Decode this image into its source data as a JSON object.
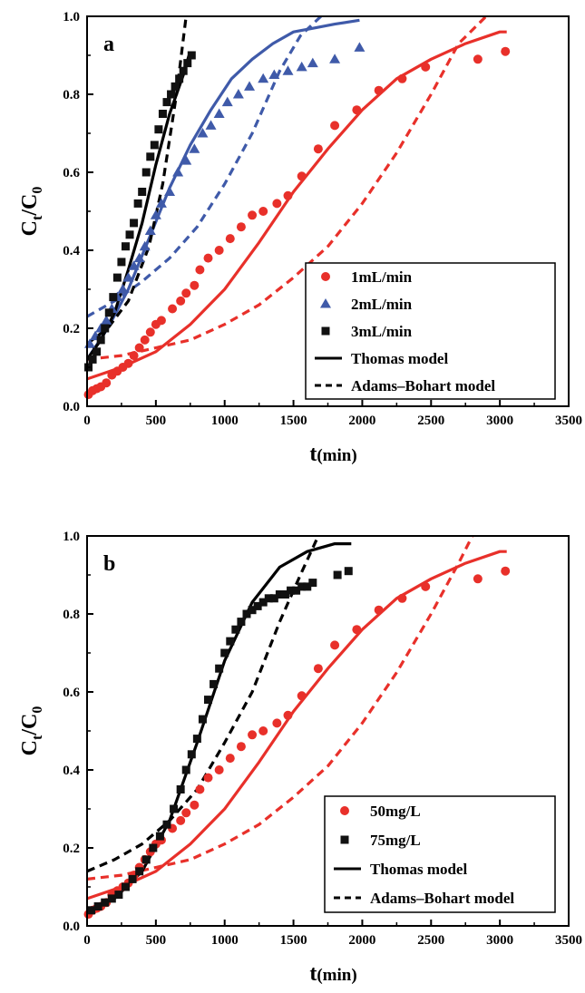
{
  "chart_data": [
    {
      "type": "scatter",
      "panel_label": "a",
      "xlabel_main": "t",
      "xlabel_unit": "(min)",
      "ylabel_main": "C",
      "ylabel_sub1": "t",
      "ylabel_mid": "/C",
      "ylabel_sub2": "0",
      "xlim": [
        0,
        3500
      ],
      "ylim": [
        0,
        1.0
      ],
      "x_ticks": [
        "0",
        "500",
        "1000",
        "1500",
        "2000",
        "2500",
        "3000",
        "3500"
      ],
      "y_ticks": [
        "0.0",
        "0.2",
        "0.4",
        "0.6",
        "0.8",
        "1.0"
      ],
      "grid": false,
      "legend_position": "bottom-right",
      "legend": [
        {
          "label": "1mL/min",
          "kind": "marker",
          "marker": "circle",
          "color": "#e8302a"
        },
        {
          "label": "2mL/min",
          "kind": "marker",
          "marker": "triangle",
          "color": "#3f5aa9"
        },
        {
          "label": "3mL/min",
          "kind": "marker",
          "marker": "square",
          "color": "#111111"
        },
        {
          "label": "Thomas model",
          "kind": "line",
          "dash": "solid",
          "color": "#000000"
        },
        {
          "label": "Adams–Bohart model",
          "kind": "line",
          "dash": "dashed",
          "color": "#000000"
        }
      ],
      "series": [
        {
          "name": "1mL/min",
          "marker": "circle",
          "color": "#e8302a",
          "x": [
            10,
            40,
            70,
            100,
            140,
            180,
            220,
            260,
            300,
            340,
            380,
            420,
            460,
            500,
            540,
            620,
            680,
            720,
            780,
            820,
            880,
            960,
            1040,
            1120,
            1200,
            1280,
            1380,
            1460,
            1560,
            1680,
            1800,
            1960,
            2120,
            2290,
            2460,
            2840,
            3040
          ],
          "y": [
            0.03,
            0.04,
            0.045,
            0.05,
            0.06,
            0.08,
            0.09,
            0.1,
            0.11,
            0.13,
            0.15,
            0.17,
            0.19,
            0.21,
            0.22,
            0.25,
            0.27,
            0.29,
            0.31,
            0.35,
            0.38,
            0.4,
            0.43,
            0.46,
            0.49,
            0.5,
            0.52,
            0.54,
            0.59,
            0.66,
            0.72,
            0.76,
            0.81,
            0.84,
            0.87,
            0.89,
            0.91
          ]
        },
        {
          "name": "2mL/min",
          "marker": "triangle",
          "color": "#3f5aa9",
          "x": [
            20,
            60,
            100,
            140,
            180,
            220,
            260,
            300,
            340,
            380,
            420,
            460,
            500,
            540,
            600,
            660,
            720,
            780,
            840,
            900,
            960,
            1020,
            1100,
            1180,
            1280,
            1360,
            1460,
            1560,
            1640,
            1800,
            1980
          ],
          "y": [
            0.16,
            0.18,
            0.2,
            0.22,
            0.25,
            0.28,
            0.3,
            0.33,
            0.36,
            0.38,
            0.41,
            0.45,
            0.49,
            0.52,
            0.55,
            0.6,
            0.63,
            0.66,
            0.7,
            0.72,
            0.75,
            0.78,
            0.8,
            0.82,
            0.84,
            0.85,
            0.86,
            0.87,
            0.88,
            0.89,
            0.92
          ]
        },
        {
          "name": "3mL/min",
          "marker": "square",
          "color": "#111111",
          "x": [
            10,
            40,
            70,
            100,
            130,
            160,
            190,
            220,
            250,
            280,
            310,
            340,
            370,
            400,
            430,
            460,
            490,
            520,
            550,
            580,
            610,
            640,
            670,
            700,
            730,
            760
          ],
          "y": [
            0.1,
            0.12,
            0.14,
            0.17,
            0.2,
            0.24,
            0.28,
            0.33,
            0.37,
            0.41,
            0.44,
            0.47,
            0.52,
            0.55,
            0.6,
            0.64,
            0.67,
            0.71,
            0.75,
            0.78,
            0.8,
            0.82,
            0.84,
            0.86,
            0.88,
            0.9
          ]
        },
        {
          "name": "Thomas model",
          "line": "solid",
          "color": "#e8302a",
          "x": [
            0,
            250,
            500,
            750,
            1000,
            1250,
            1500,
            1750,
            2000,
            2250,
            2500,
            2750,
            3000,
            3050
          ],
          "y": [
            0.07,
            0.1,
            0.14,
            0.21,
            0.3,
            0.42,
            0.55,
            0.66,
            0.76,
            0.84,
            0.89,
            0.93,
            0.96,
            0.96
          ]
        },
        {
          "name": "Adams–Bohart model",
          "line": "dashed",
          "color": "#e8302a",
          "x": [
            0,
            250,
            500,
            750,
            1000,
            1250,
            1500,
            1750,
            2000,
            2250,
            2500,
            2700,
            2900
          ],
          "y": [
            0.12,
            0.13,
            0.15,
            0.17,
            0.21,
            0.26,
            0.33,
            0.41,
            0.52,
            0.65,
            0.8,
            0.93,
            1.0
          ]
        },
        {
          "name": "Thomas model",
          "line": "solid",
          "color": "#3f5aa9",
          "x": [
            0,
            150,
            300,
            450,
            600,
            750,
            900,
            1050,
            1200,
            1350,
            1500,
            1650,
            1800,
            1980
          ],
          "y": [
            0.12,
            0.2,
            0.3,
            0.43,
            0.56,
            0.67,
            0.76,
            0.84,
            0.89,
            0.93,
            0.96,
            0.97,
            0.98,
            0.99
          ]
        },
        {
          "name": "Adams–Bohart model",
          "line": "dashed",
          "color": "#3f5aa9",
          "x": [
            0,
            200,
            400,
            600,
            800,
            1000,
            1200,
            1400,
            1550,
            1700
          ],
          "y": [
            0.23,
            0.27,
            0.32,
            0.38,
            0.46,
            0.57,
            0.7,
            0.86,
            0.95,
            1.0
          ]
        },
        {
          "name": "Thomas model",
          "line": "solid",
          "color": "#000000",
          "x": [
            0,
            100,
            200,
            300,
            400,
            500,
            600,
            700,
            740
          ],
          "y": [
            0.12,
            0.17,
            0.24,
            0.35,
            0.47,
            0.62,
            0.75,
            0.85,
            0.9
          ]
        },
        {
          "name": "Adams–Bohart model",
          "line": "dashed",
          "color": "#000000",
          "x": [
            0,
            150,
            300,
            450,
            550,
            650,
            720
          ],
          "y": [
            0.16,
            0.2,
            0.27,
            0.41,
            0.57,
            0.8,
            1.0
          ]
        }
      ]
    },
    {
      "type": "scatter",
      "panel_label": "b",
      "xlabel_main": "t",
      "xlabel_unit": "(min)",
      "ylabel_main": "C",
      "ylabel_sub1": "t",
      "ylabel_mid": "/C",
      "ylabel_sub2": "0",
      "xlim": [
        0,
        3500
      ],
      "ylim": [
        0,
        1.0
      ],
      "x_ticks": [
        "0",
        "500",
        "1000",
        "1500",
        "2000",
        "2500",
        "3000",
        "3500"
      ],
      "y_ticks": [
        "0.0",
        "0.2",
        "0.4",
        "0.6",
        "0.8",
        "1.0"
      ],
      "grid": false,
      "legend_position": "bottom-right",
      "legend": [
        {
          "label": "50mg/L",
          "kind": "marker",
          "marker": "circle",
          "color": "#e8302a"
        },
        {
          "label": "75mg/L",
          "kind": "marker",
          "marker": "square",
          "color": "#111111"
        },
        {
          "label": "Thomas model",
          "kind": "line",
          "dash": "solid",
          "color": "#000000"
        },
        {
          "label": "Adams–Bohart model",
          "kind": "line",
          "dash": "dashed",
          "color": "#000000"
        }
      ],
      "series": [
        {
          "name": "50mg/L",
          "marker": "circle",
          "color": "#e8302a",
          "x": [
            10,
            40,
            70,
            100,
            140,
            180,
            220,
            260,
            300,
            340,
            380,
            420,
            460,
            500,
            540,
            620,
            680,
            720,
            780,
            820,
            880,
            960,
            1040,
            1120,
            1200,
            1280,
            1380,
            1460,
            1560,
            1680,
            1800,
            1960,
            2120,
            2290,
            2460,
            2840,
            3040
          ],
          "y": [
            0.03,
            0.04,
            0.045,
            0.05,
            0.06,
            0.08,
            0.09,
            0.1,
            0.11,
            0.13,
            0.15,
            0.17,
            0.19,
            0.21,
            0.22,
            0.25,
            0.27,
            0.29,
            0.31,
            0.35,
            0.38,
            0.4,
            0.43,
            0.46,
            0.49,
            0.5,
            0.52,
            0.54,
            0.59,
            0.66,
            0.72,
            0.76,
            0.81,
            0.84,
            0.87,
            0.89,
            0.91
          ]
        },
        {
          "name": "75mg/L",
          "marker": "square",
          "color": "#111111",
          "x": [
            30,
            80,
            130,
            180,
            230,
            280,
            330,
            380,
            430,
            480,
            530,
            580,
            630,
            680,
            720,
            760,
            800,
            840,
            880,
            920,
            960,
            1000,
            1040,
            1080,
            1120,
            1160,
            1200,
            1240,
            1280,
            1320,
            1360,
            1400,
            1440,
            1480,
            1520,
            1560,
            1600,
            1640,
            1820,
            1900
          ],
          "y": [
            0.04,
            0.05,
            0.06,
            0.07,
            0.08,
            0.1,
            0.12,
            0.14,
            0.17,
            0.2,
            0.23,
            0.26,
            0.3,
            0.35,
            0.4,
            0.44,
            0.48,
            0.53,
            0.58,
            0.62,
            0.66,
            0.7,
            0.73,
            0.76,
            0.78,
            0.8,
            0.81,
            0.82,
            0.83,
            0.84,
            0.84,
            0.85,
            0.85,
            0.86,
            0.86,
            0.87,
            0.87,
            0.88,
            0.9,
            0.91
          ]
        },
        {
          "name": "Thomas model",
          "line": "solid",
          "color": "#e8302a",
          "x": [
            0,
            250,
            500,
            750,
            1000,
            1250,
            1500,
            1750,
            2000,
            2250,
            2500,
            2750,
            3000,
            3050
          ],
          "y": [
            0.07,
            0.1,
            0.14,
            0.21,
            0.3,
            0.42,
            0.55,
            0.66,
            0.76,
            0.84,
            0.89,
            0.93,
            0.96,
            0.96
          ]
        },
        {
          "name": "Adams–Bohart model",
          "line": "dashed",
          "color": "#e8302a",
          "x": [
            0,
            250,
            500,
            750,
            1000,
            1250,
            1500,
            1750,
            2000,
            2250,
            2500,
            2700,
            2800
          ],
          "y": [
            0.12,
            0.13,
            0.15,
            0.17,
            0.21,
            0.26,
            0.33,
            0.41,
            0.52,
            0.65,
            0.8,
            0.93,
            1.0
          ]
        },
        {
          "name": "Thomas model",
          "line": "solid",
          "color": "#000000",
          "x": [
            0,
            200,
            400,
            600,
            800,
            1000,
            1200,
            1400,
            1600,
            1800,
            1920
          ],
          "y": [
            0.04,
            0.07,
            0.14,
            0.27,
            0.47,
            0.68,
            0.83,
            0.92,
            0.96,
            0.98,
            0.98
          ]
        },
        {
          "name": "Adams–Bohart model",
          "line": "dashed",
          "color": "#000000",
          "x": [
            0,
            200,
            400,
            600,
            800,
            1000,
            1200,
            1400,
            1550,
            1680
          ],
          "y": [
            0.14,
            0.17,
            0.21,
            0.27,
            0.35,
            0.47,
            0.6,
            0.78,
            0.9,
            1.0
          ]
        }
      ]
    }
  ]
}
